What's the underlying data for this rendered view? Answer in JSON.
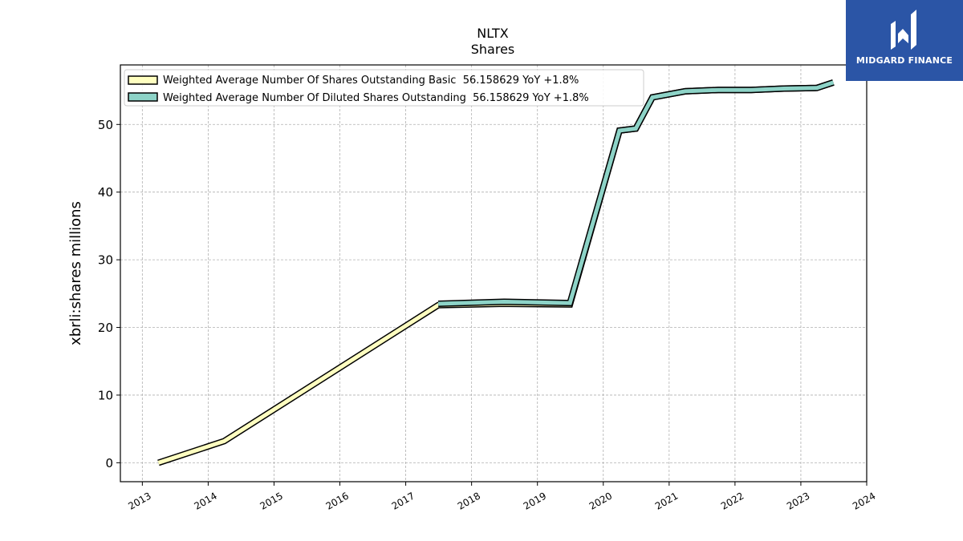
{
  "chart_data": {
    "type": "line",
    "title": "NLTX",
    "subtitle": "Shares",
    "ylabel": "xbrli:shares millions",
    "xlabel": "",
    "xlim": [
      "2012-09-01",
      "2024-01-01"
    ],
    "ylim": [
      -2.8,
      90
    ],
    "y_ticks": [
      0,
      10,
      20,
      30,
      40,
      50
    ],
    "x_ticks": [
      "2013",
      "2014",
      "2015",
      "2016",
      "2017",
      "2018",
      "2019",
      "2020",
      "2021",
      "2022",
      "2023",
      "2024"
    ],
    "grid": true,
    "legend_position": "top-left",
    "series": [
      {
        "name": "Weighted Average Number Of Shares Outstanding Basic",
        "legend_label": "Weighted Average Number Of Shares Outstanding Basic  56.158629 YoY +1.8%",
        "color": "#ffffc0",
        "points": [
          [
            "2013-03-31",
            0.0
          ],
          [
            "2014-03-31",
            3.2
          ],
          [
            "2017-06-30",
            23.3
          ],
          [
            "2018-06-30",
            23.5
          ],
          [
            "2019-06-30",
            23.4
          ],
          [
            "2020-03-31",
            49.1
          ],
          [
            "2020-06-30",
            49.4
          ],
          [
            "2020-09-30",
            54.0
          ],
          [
            "2021-03-31",
            54.9
          ],
          [
            "2021-09-30",
            55.1
          ],
          [
            "2022-03-31",
            55.1
          ],
          [
            "2022-09-30",
            55.3
          ],
          [
            "2023-03-31",
            55.4
          ],
          [
            "2023-06-30",
            56.2
          ]
        ]
      },
      {
        "name": "Weighted Average Number Of Diluted Shares Outstanding",
        "legend_label": "Weighted Average Number Of Diluted Shares Outstanding  56.158629 YoY +1.8%",
        "color": "#8dd3c7",
        "points": [
          [
            "2017-06-30",
            23.5
          ],
          [
            "2018-06-30",
            23.8
          ],
          [
            "2019-06-30",
            23.6
          ],
          [
            "2020-03-31",
            49.1
          ],
          [
            "2020-06-30",
            49.4
          ],
          [
            "2020-09-30",
            54.0
          ],
          [
            "2021-03-31",
            54.9
          ],
          [
            "2021-09-30",
            55.1
          ],
          [
            "2022-03-31",
            55.1
          ],
          [
            "2022-09-30",
            55.3
          ],
          [
            "2023-03-31",
            55.4
          ],
          [
            "2023-06-30",
            56.2
          ]
        ]
      }
    ]
  },
  "branding": {
    "logo_text": "MIDGARD FINANCE",
    "logo_color": "#2b55a6"
  }
}
